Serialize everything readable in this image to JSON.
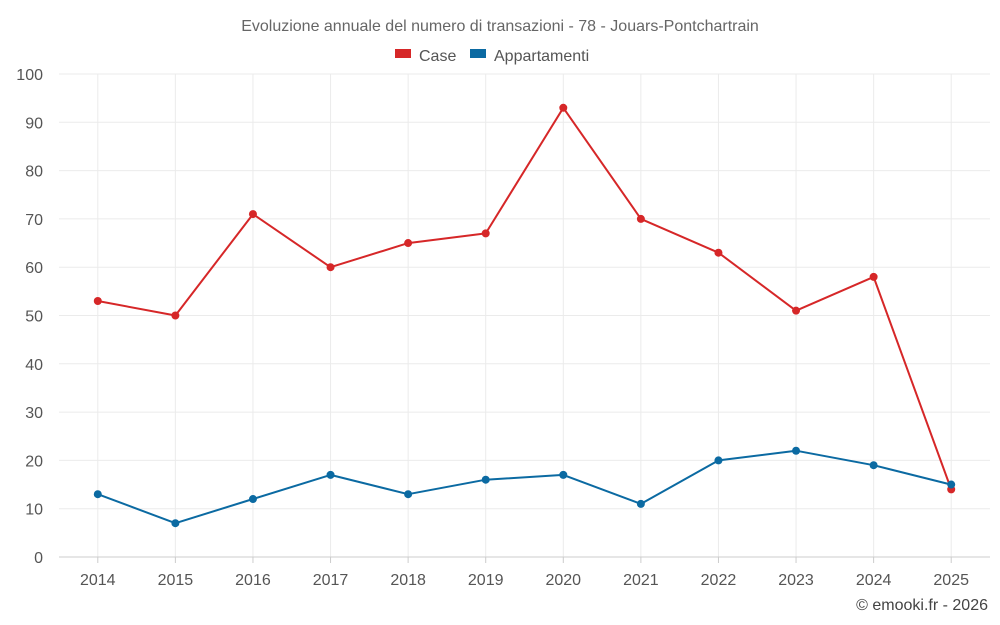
{
  "chart_data": {
    "type": "line",
    "title": "Evoluzione annuale del numero di transazioni - 78 - Jouars-Pontchartrain",
    "categories": [
      "2014",
      "2015",
      "2016",
      "2017",
      "2018",
      "2019",
      "2020",
      "2021",
      "2022",
      "2023",
      "2024",
      "2025"
    ],
    "series": [
      {
        "name": "Case",
        "color": "#d62728",
        "values": [
          53,
          50,
          71,
          60,
          65,
          67,
          93,
          70,
          63,
          51,
          58,
          14
        ]
      },
      {
        "name": "Appartamenti",
        "color": "#0b6aa2",
        "values": [
          13,
          7,
          12,
          17,
          13,
          16,
          17,
          11,
          20,
          22,
          19,
          15
        ]
      }
    ],
    "ylim": [
      0,
      100
    ],
    "yticks": [
      0,
      10,
      20,
      30,
      40,
      50,
      60,
      70,
      80,
      90,
      100
    ],
    "xlabel": "",
    "ylabel": "",
    "grid": true,
    "legend_position": "top-center"
  },
  "credit": "© emooki.fr - 2026"
}
